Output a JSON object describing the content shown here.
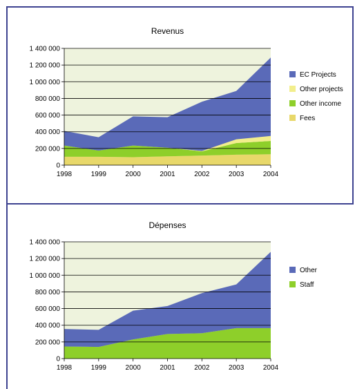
{
  "chart_data": [
    {
      "type": "area",
      "stacked": true,
      "title": "Revenus",
      "xlabel": "",
      "ylabel": "",
      "categories": [
        "1998",
        "1999",
        "2000",
        "2001",
        "2002",
        "2003",
        "2004"
      ],
      "ylim": [
        0,
        1400000
      ],
      "yticks": [
        "0",
        "200 000",
        "400 000",
        "600 000",
        "800 000",
        "1 000 000",
        "1 200 000",
        "1 400 000"
      ],
      "grid": true,
      "legend": "right",
      "series": [
        {
          "name": "Fees",
          "color": "#e8d86a",
          "values": [
            100000,
            100000,
            95000,
            105000,
            115000,
            125000,
            130000
          ]
        },
        {
          "name": "Other income",
          "color": "#8ecf2a",
          "values": [
            135000,
            75000,
            140000,
            105000,
            50000,
            140000,
            160000
          ]
        },
        {
          "name": "Other projects",
          "color": "#f2ee8c",
          "values": [
            0,
            0,
            0,
            0,
            5000,
            45000,
            60000
          ]
        },
        {
          "name": "EC Projects",
          "color": "#5a6ab8",
          "values": [
            175000,
            160000,
            350000,
            365000,
            590000,
            580000,
            940000
          ]
        }
      ]
    },
    {
      "type": "area",
      "stacked": true,
      "title": "Dépenses",
      "xlabel": "",
      "ylabel": "",
      "categories": [
        "1998",
        "1999",
        "2000",
        "2001",
        "2002",
        "2003",
        "2004"
      ],
      "ylim": [
        0,
        1400000
      ],
      "yticks": [
        "0",
        "200 000",
        "400 000",
        "600 000",
        "800 000",
        "1 000 000",
        "1 200 000",
        "1 400 000"
      ],
      "grid": true,
      "legend": "right",
      "series": [
        {
          "name": "Staff",
          "color": "#8ecf2a",
          "values": [
            145000,
            140000,
            230000,
            295000,
            305000,
            365000,
            365000
          ]
        },
        {
          "name": "Other",
          "color": "#5a6ab8",
          "values": [
            210000,
            205000,
            345000,
            335000,
            480000,
            525000,
            915000
          ]
        }
      ]
    }
  ],
  "style": {
    "plot_background": "#eef3dd",
    "gridline": "#000000",
    "border": "#3d4290"
  }
}
